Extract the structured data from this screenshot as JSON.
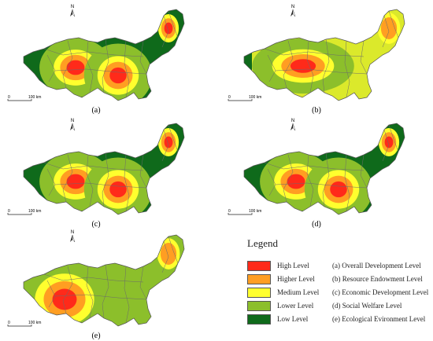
{
  "panels": [
    {
      "id": "a",
      "caption": "(a)",
      "scale": {
        "zero": "0",
        "end": "100 km"
      },
      "north": "N",
      "hotspots": [
        {
          "center": "west",
          "levels": [
            "lower",
            "medium",
            "higher",
            "high"
          ]
        },
        {
          "center": "middle",
          "levels": [
            "lower",
            "medium",
            "higher",
            "high"
          ]
        },
        {
          "center": "northeast",
          "levels": [
            "medium",
            "higher",
            "high"
          ]
        }
      ]
    },
    {
      "id": "b",
      "caption": "(b)",
      "scale": {
        "zero": "0",
        "end": "100 km"
      },
      "north": "N",
      "hotspots": [
        {
          "center": "west",
          "levels": [
            "lower",
            "medium",
            "higher",
            "high"
          ]
        },
        {
          "center": "northeast",
          "levels": [
            "medium",
            "higher"
          ]
        }
      ]
    },
    {
      "id": "c",
      "caption": "(c)",
      "scale": {
        "zero": "0",
        "end": "100 km"
      },
      "north": "N",
      "hotspots": [
        {
          "center": "west",
          "levels": [
            "lower",
            "medium",
            "higher",
            "high"
          ]
        },
        {
          "center": "middle",
          "levels": [
            "lower",
            "medium",
            "higher",
            "high"
          ]
        },
        {
          "center": "northeast",
          "levels": [
            "medium",
            "higher",
            "high"
          ]
        }
      ]
    },
    {
      "id": "d",
      "caption": "(d)",
      "scale": {
        "zero": "0",
        "end": "100 km"
      },
      "north": "N",
      "hotspots": [
        {
          "center": "west",
          "levels": [
            "lower",
            "medium",
            "higher",
            "high"
          ]
        },
        {
          "center": "middle",
          "levels": [
            "lower",
            "medium",
            "higher",
            "high"
          ]
        },
        {
          "center": "northeast",
          "levels": [
            "medium",
            "higher",
            "high"
          ]
        }
      ]
    },
    {
      "id": "e",
      "caption": "(e)",
      "scale": {
        "zero": "0",
        "end": "100 km"
      },
      "north": "N",
      "hotspots": [
        {
          "center": "west",
          "levels": [
            "lower",
            "medium",
            "higher",
            "high"
          ]
        },
        {
          "center": "northeast",
          "levels": [
            "medium",
            "higher"
          ]
        }
      ]
    }
  ],
  "legend": {
    "title": "Legend",
    "levels": [
      {
        "key": "high",
        "label": "High Level",
        "color": "#ff2a1a"
      },
      {
        "key": "higher",
        "label": "Higher Level",
        "color": "#ff9e22"
      },
      {
        "key": "medium",
        "label": "Medium Level",
        "color": "#ffff2e"
      },
      {
        "key": "lower",
        "label": "Lower Level",
        "color": "#8cbf2b"
      },
      {
        "key": "low",
        "label": "Low Level",
        "color": "#0f6a1b"
      }
    ],
    "panel_descriptions": [
      "(a) Overall Development Level",
      "(b) Resource Endowment Level",
      "(c) Economic Development Level",
      "(d) Social Welfare Level",
      "(e) Ecological Evironment Level"
    ]
  }
}
